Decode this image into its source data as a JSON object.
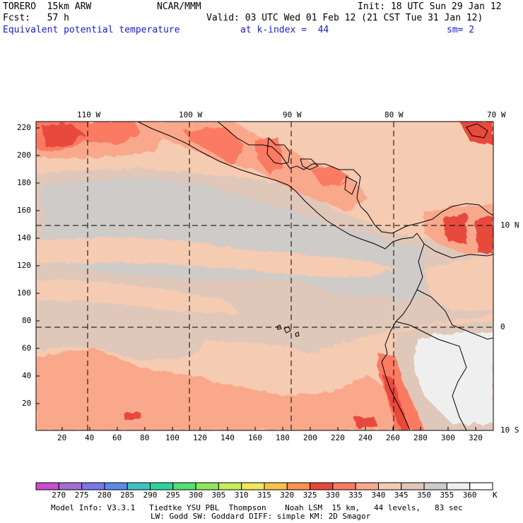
{
  "header": {
    "model": "TORERO  15km ARW",
    "org": "NCAR/MMM",
    "init": "Init: 18 UTC Sun 29 Jan 12",
    "fcst": "Fcst:   57 h",
    "valid": "Valid: 03 UTC Wed 01 Feb 12 (21 CST Tue 31 Jan 12)",
    "field": "Equivalent potential temperature",
    "level": "at k-index =  44",
    "smooth": "sm= 2"
  },
  "map": {
    "lon_labels": [
      "110 W",
      "100 W",
      "90 W",
      "80 W",
      "70 W"
    ],
    "lat_labels": [
      "10 N",
      "0",
      "10 S"
    ],
    "y_ticks": [
      "220",
      "200",
      "180",
      "160",
      "140",
      "120",
      "100",
      "80",
      "60",
      "40",
      "20"
    ],
    "x_ticks": [
      "20",
      "40",
      "60",
      "80",
      "100",
      "120",
      "140",
      "160",
      "180",
      "200",
      "220",
      "240",
      "260",
      "280",
      "300",
      "320"
    ],
    "colors": {
      "c330": "#e8483c",
      "c335": "#fa7a62",
      "c340": "#f9a88c",
      "c345": "#f5cbb2",
      "c350": "#dfc8ba",
      "c355": "#cfcbc9",
      "c360": "#efefef"
    }
  },
  "legend": {
    "units": "K",
    "labels": [
      "270",
      "275",
      "280",
      "285",
      "290",
      "295",
      "300",
      "305",
      "310",
      "315",
      "320",
      "325",
      "330",
      "335",
      "340",
      "345",
      "350",
      "355",
      "360"
    ],
    "colors": [
      "#c74fcc",
      "#a46ecf",
      "#7c77ea",
      "#5a8be6",
      "#3ec3c3",
      "#2fd39c",
      "#55e070",
      "#8fe85a",
      "#c6ed5a",
      "#eee85a",
      "#f6c24a",
      "#f99150",
      "#e8483c",
      "#fa7a62",
      "#f9a88c",
      "#f5cbb2",
      "#dfc8ba",
      "#cfcbc9",
      "#efefef",
      "#ffffff"
    ]
  },
  "footer": {
    "line1": "Model Info: V3.3.1   Tiedtke YSU PBL  Thompson    Noah LSM  15 km,   44 levels,   83 sec",
    "line2": "LW: Godd SW: Goddard DIFF: simple KM: 2D Smagor"
  }
}
